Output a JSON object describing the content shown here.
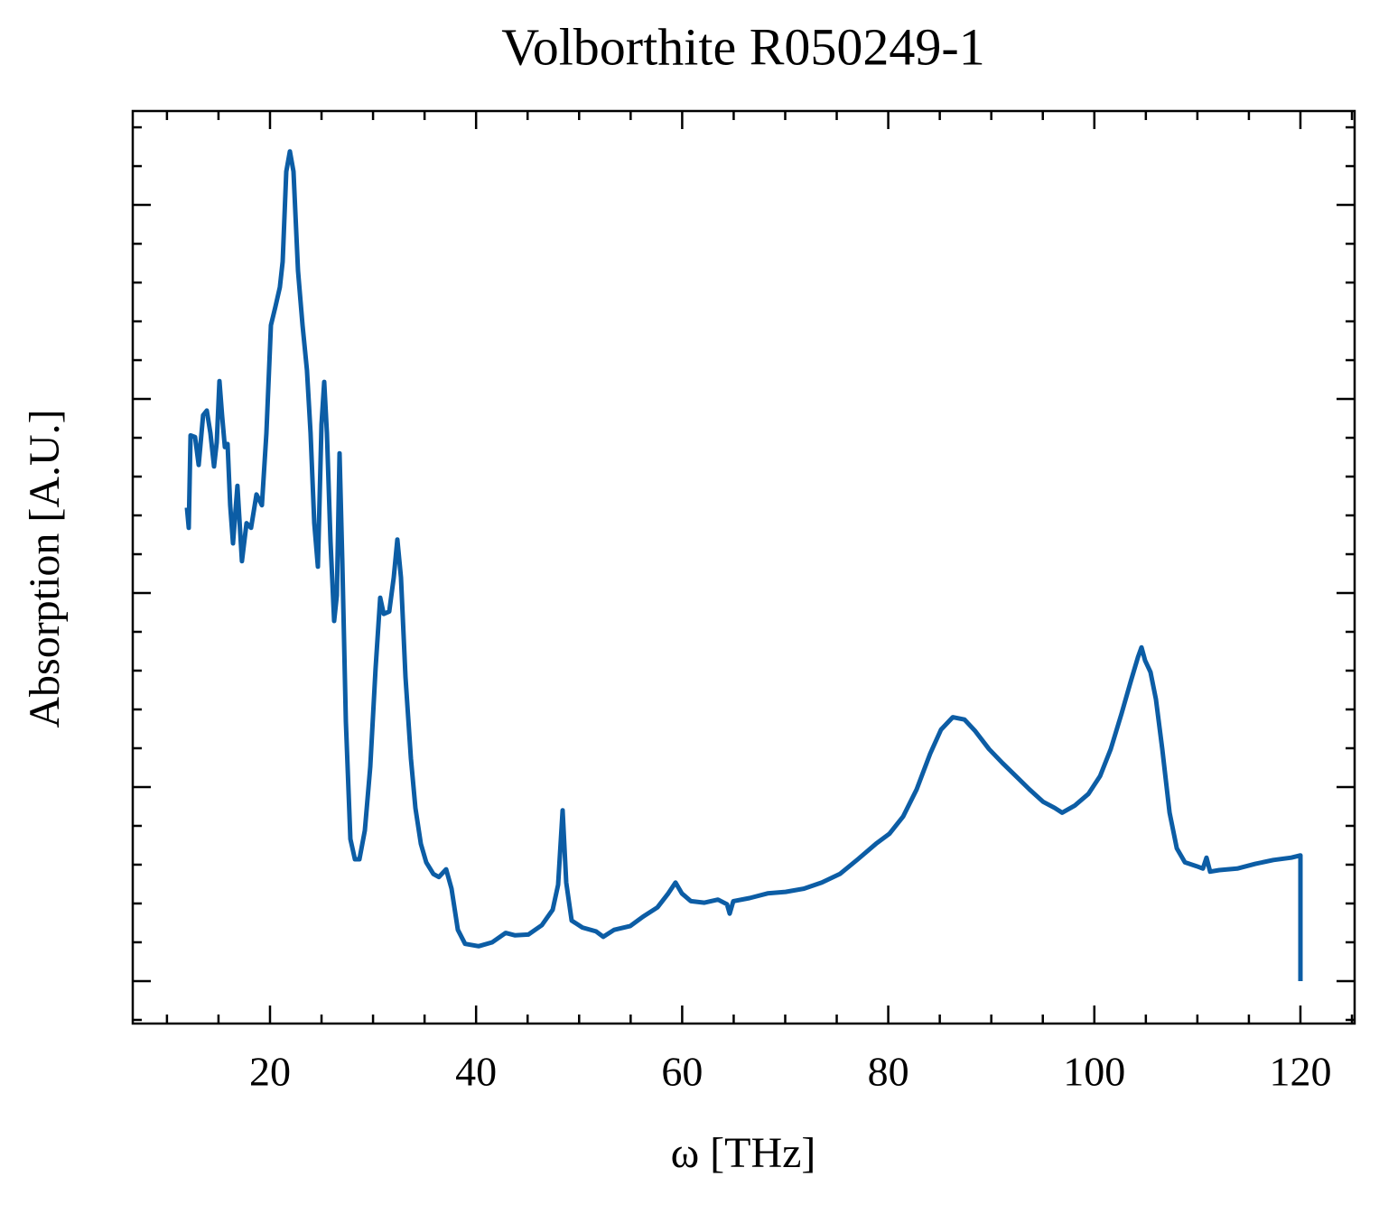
{
  "chart_data": {
    "type": "line",
    "title": "Volborthite R050249-1",
    "xlabel": "ω [THz]",
    "ylabel": "Absorption [A.U.]",
    "xlim": [
      6.68,
      125.26
    ],
    "ylim": [
      -0.0547,
      1.121
    ],
    "xticks": [
      20,
      40,
      60,
      80,
      100,
      120
    ],
    "xminorticks": [
      10,
      15,
      25,
      30,
      35,
      45,
      50,
      55,
      65,
      70,
      75,
      85,
      90,
      95,
      105,
      110,
      115,
      125
    ],
    "yticks": [
      0,
      0.25,
      0.5,
      0.75,
      1
    ],
    "yminorticks": [
      -0.05,
      0.05,
      0.1,
      0.15,
      0.2,
      0.3,
      0.35,
      0.4,
      0.45,
      0.55,
      0.6,
      0.65,
      0.7,
      0.8,
      0.85,
      0.9,
      0.95,
      1.05,
      1.1
    ],
    "ytick_labels": false,
    "ticks_direction": "in",
    "grid": false,
    "series": [
      {
        "color": "#0C5DA5",
        "x": [
          11.94,
          12.11,
          12.29,
          12.73,
          13.08,
          13.51,
          13.87,
          14.22,
          14.57,
          14.83,
          15.09,
          15.35,
          15.62,
          15.88,
          16.14,
          16.41,
          16.84,
          17.28,
          17.72,
          18.16,
          18.69,
          19.21,
          19.65,
          20.09,
          20.53,
          20.96,
          21.23,
          21.58,
          21.93,
          22.28,
          22.72,
          23.16,
          23.59,
          23.94,
          24.3,
          24.65,
          25.0,
          25.26,
          25.52,
          25.87,
          26.22,
          26.49,
          26.75,
          27.01,
          27.36,
          27.8,
          28.24,
          28.68,
          29.2,
          29.73,
          30.25,
          30.69,
          31.04,
          31.57,
          32.01,
          32.36,
          32.71,
          33.15,
          33.67,
          34.11,
          34.64,
          35.16,
          35.86,
          36.39,
          37.09,
          37.62,
          38.23,
          38.93,
          40.25,
          41.56,
          42.87,
          43.75,
          45.07,
          46.38,
          47.43,
          47.96,
          48.4,
          48.75,
          49.27,
          50.32,
          51.64,
          52.34,
          53.39,
          54.97,
          56.2,
          57.6,
          58.65,
          59.35,
          59.97,
          60.84,
          62.16,
          63.47,
          64.35,
          64.61,
          64.96,
          66.54,
          68.29,
          70.04,
          71.8,
          73.55,
          75.3,
          77.05,
          78.81,
          80.12,
          81.44,
          82.75,
          84.07,
          85.12,
          86.26,
          87.4,
          88.45,
          89.77,
          91.08,
          92.39,
          93.71,
          95.03,
          96.16,
          96.87,
          98.09,
          99.41,
          100.55,
          101.6,
          102.65,
          103.53,
          104.23,
          104.58,
          104.93,
          105.45,
          105.98,
          106.59,
          107.3,
          108.0,
          108.79,
          109.93,
          110.54,
          110.89,
          111.24,
          112.12,
          113.87,
          115.62,
          117.37,
          119.12,
          120.0,
          120.0
        ],
        "values": [
          0.61,
          0.584,
          0.703,
          0.701,
          0.665,
          0.729,
          0.735,
          0.706,
          0.663,
          0.694,
          0.773,
          0.729,
          0.688,
          0.692,
          0.613,
          0.564,
          0.638,
          0.541,
          0.59,
          0.584,
          0.627,
          0.613,
          0.706,
          0.845,
          0.869,
          0.894,
          0.927,
          1.043,
          1.069,
          1.043,
          0.915,
          0.845,
          0.787,
          0.706,
          0.59,
          0.534,
          0.717,
          0.772,
          0.706,
          0.566,
          0.464,
          0.497,
          0.68,
          0.543,
          0.334,
          0.183,
          0.157,
          0.157,
          0.194,
          0.276,
          0.403,
          0.494,
          0.473,
          0.476,
          0.52,
          0.569,
          0.52,
          0.392,
          0.287,
          0.223,
          0.177,
          0.153,
          0.138,
          0.134,
          0.144,
          0.119,
          0.066,
          0.048,
          0.045,
          0.05,
          0.062,
          0.059,
          0.06,
          0.072,
          0.092,
          0.124,
          0.22,
          0.127,
          0.078,
          0.069,
          0.064,
          0.057,
          0.066,
          0.071,
          0.083,
          0.095,
          0.113,
          0.127,
          0.113,
          0.103,
          0.101,
          0.105,
          0.099,
          0.087,
          0.103,
          0.107,
          0.113,
          0.115,
          0.119,
          0.127,
          0.138,
          0.157,
          0.177,
          0.19,
          0.212,
          0.247,
          0.293,
          0.324,
          0.34,
          0.337,
          0.322,
          0.299,
          0.281,
          0.264,
          0.247,
          0.231,
          0.223,
          0.217,
          0.226,
          0.241,
          0.264,
          0.299,
          0.345,
          0.386,
          0.417,
          0.43,
          0.413,
          0.398,
          0.363,
          0.299,
          0.217,
          0.171,
          0.153,
          0.148,
          0.145,
          0.159,
          0.141,
          0.143,
          0.145,
          0.151,
          0.156,
          0.159,
          0.162,
          0
        ]
      }
    ]
  }
}
